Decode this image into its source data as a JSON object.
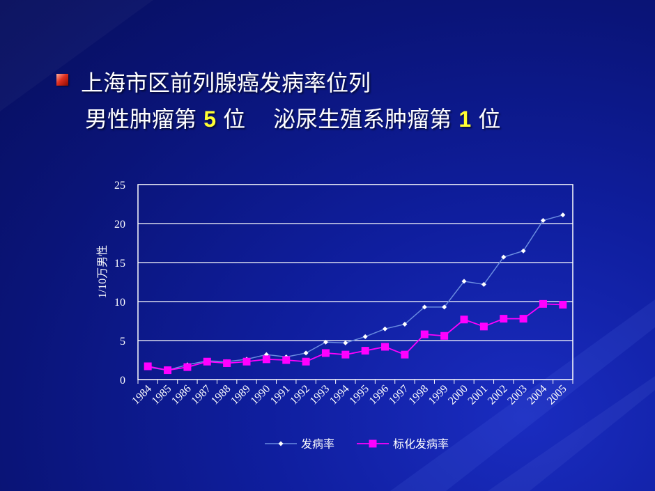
{
  "slide": {
    "title_line1": "上海市区前列腺癌发病率位列",
    "line2_prefix": "男性肿瘤第 ",
    "line2_num1": "5",
    "line2_mid": " 位",
    "line2_prefix2": "泌尿生殖系肿瘤第 ",
    "line2_num2": "1",
    "line2_suffix": " 位"
  },
  "colors": {
    "series1": "#6a8ce0",
    "series1_marker": "#ffffff",
    "series2": "#ff00ff",
    "grid": "#ffffff",
    "text": "#ffffff"
  },
  "chart_data": {
    "type": "line",
    "ylabel": "1/10万男性",
    "xlabel": "",
    "ylim": [
      0,
      25
    ],
    "yticks": [
      0,
      5,
      10,
      15,
      20,
      25
    ],
    "grid": true,
    "legend_position": "bottom",
    "categories": [
      "1984",
      "1985",
      "1986",
      "1987",
      "1988",
      "1989",
      "1990",
      "1991",
      "1992",
      "1993",
      "1994",
      "1995",
      "1996",
      "1997",
      "1998",
      "1999",
      "2000",
      "2001",
      "2002",
      "2003",
      "2004",
      "2005"
    ],
    "series": [
      {
        "name": "发病率",
        "marker": "diamond",
        "values": [
          1.6,
          1.2,
          1.9,
          2.4,
          2.3,
          2.6,
          3.2,
          2.9,
          3.4,
          4.8,
          4.7,
          5.5,
          6.5,
          7.1,
          9.3,
          9.3,
          12.6,
          12.2,
          15.7,
          16.5,
          20.4,
          21.1
        ]
      },
      {
        "name": "标化发病率",
        "marker": "square",
        "values": [
          1.7,
          1.2,
          1.6,
          2.3,
          2.1,
          2.3,
          2.6,
          2.5,
          2.3,
          3.4,
          3.2,
          3.7,
          4.2,
          3.2,
          5.8,
          5.6,
          7.7,
          6.8,
          7.8,
          7.8,
          9.7,
          9.6
        ]
      }
    ]
  }
}
